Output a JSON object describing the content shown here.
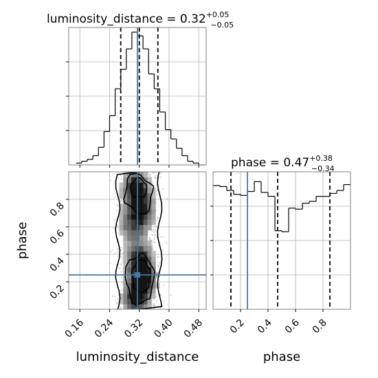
{
  "chart_data": [
    {
      "type": "step-histogram",
      "panel": "luminosity_distance marginal",
      "title": {
        "prefix": "luminosity_distance = 0.32",
        "plus": "+0.05",
        "minus": "−0.05"
      },
      "xlim": [
        0.13,
        0.5
      ],
      "bin_edges": [
        0.15,
        0.165,
        0.18,
        0.195,
        0.21,
        0.225,
        0.24,
        0.255,
        0.27,
        0.285,
        0.3,
        0.315,
        0.33,
        0.345,
        0.36,
        0.375,
        0.39,
        0.405,
        0.42,
        0.435,
        0.45,
        0.465,
        0.48,
        0.495
      ],
      "counts": [
        2,
        4,
        6,
        10,
        19,
        36,
        53,
        82,
        103,
        125,
        143,
        139,
        125,
        98,
        82,
        57,
        38,
        28,
        18,
        10,
        4,
        2,
        0
      ],
      "ylim": [
        0,
        148
      ],
      "quantile_lines": [
        0.27,
        0.32,
        0.37
      ],
      "truth": 0.315,
      "grid": true
    },
    {
      "type": "step-histogram",
      "panel": "phase marginal",
      "title": {
        "prefix": "phase = 0.47",
        "plus": "+0.38",
        "minus": "−0.34"
      },
      "xlim": [
        0.0,
        1.0
      ],
      "bin_edges": [
        0.0,
        0.05,
        0.1,
        0.15,
        0.2,
        0.25,
        0.3,
        0.35,
        0.4,
        0.45,
        0.5,
        0.55,
        0.6,
        0.65,
        0.7,
        0.75,
        0.8,
        0.85,
        0.9,
        0.95,
        1.0
      ],
      "counts": [
        126,
        125,
        121,
        117,
        116,
        120,
        130,
        119,
        115,
        80,
        79,
        103,
        102,
        108,
        110,
        115,
        115,
        118,
        121,
        127
      ],
      "ylim": [
        0,
        140
      ],
      "quantile_lines": [
        0.13,
        0.47,
        0.85
      ],
      "truth": 0.25,
      "xticks": [
        "0.2",
        "0.4",
        "0.6",
        "0.8"
      ],
      "xlabel": "phase",
      "grid": true
    },
    {
      "type": "2d-density",
      "panel": "phase vs luminosity_distance",
      "xlim": [
        0.13,
        0.5
      ],
      "ylim": [
        0.0,
        1.0
      ],
      "xticks": [
        "0.16",
        "0.24",
        "0.32",
        "0.40",
        "0.48"
      ],
      "yticks": [
        "0.2",
        "0.4",
        "0.6",
        "0.8"
      ],
      "xlabel": "luminosity_distance",
      "ylabel": "phase",
      "truth": {
        "x": 0.315,
        "y": 0.25
      },
      "density_centers": [
        {
          "x": 0.31,
          "y": 0.88,
          "w": 1.0
        },
        {
          "x": 0.33,
          "y": 0.72,
          "w": 0.75
        },
        {
          "x": 0.3,
          "y": 0.62,
          "w": 0.6
        },
        {
          "x": 0.32,
          "y": 0.36,
          "w": 0.9
        },
        {
          "x": 0.33,
          "y": 0.22,
          "w": 0.85
        },
        {
          "x": 0.31,
          "y": 0.08,
          "w": 0.95
        }
      ],
      "grid": true
    }
  ],
  "colors": {
    "truth": "#4477aa",
    "hist": "#000000",
    "grid": "#b0b0b0"
  }
}
